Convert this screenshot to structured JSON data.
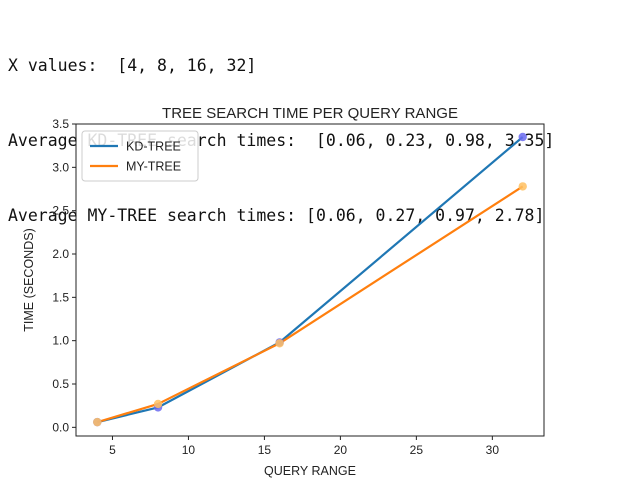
{
  "console": {
    "lines": [
      "X values:  [4, 8, 16, 32]",
      "Average KD-TREE search times:  [0.06, 0.23, 0.98, 3.35]",
      "Average MY-TREE search times: [0.06, 0.27, 0.97, 2.78]"
    ]
  },
  "chart_data": {
    "type": "line",
    "title": "TREE SEARCH TIME PER QUERY RANGE",
    "xlabel": "QUERY RANGE",
    "ylabel": "TIME (SECONDS)",
    "x": [
      4,
      8,
      16,
      32
    ],
    "xlim": [
      2.6,
      33.4
    ],
    "ylim": [
      -0.1,
      3.5
    ],
    "xticks": [
      5,
      10,
      15,
      20,
      25,
      30
    ],
    "yticks": [
      0.0,
      0.5,
      1.0,
      1.5,
      2.0,
      2.5,
      3.0,
      3.5
    ],
    "xtick_labels": [
      "5",
      "10",
      "15",
      "20",
      "25",
      "30"
    ],
    "ytick_labels": [
      "0.0",
      "0.5",
      "1.0",
      "1.5",
      "2.0",
      "2.5",
      "3.0",
      "3.5"
    ],
    "grid": false,
    "legend": "top-left",
    "series": [
      {
        "name": "KD-TREE",
        "values": [
          0.06,
          0.23,
          0.98,
          3.35
        ],
        "color": "#1f77b4",
        "marker_color": "#6a6af0"
      },
      {
        "name": "MY-TREE",
        "values": [
          0.06,
          0.27,
          0.97,
          2.78
        ],
        "color": "#ff7f0e",
        "marker_color": "#ffc060"
      }
    ]
  }
}
